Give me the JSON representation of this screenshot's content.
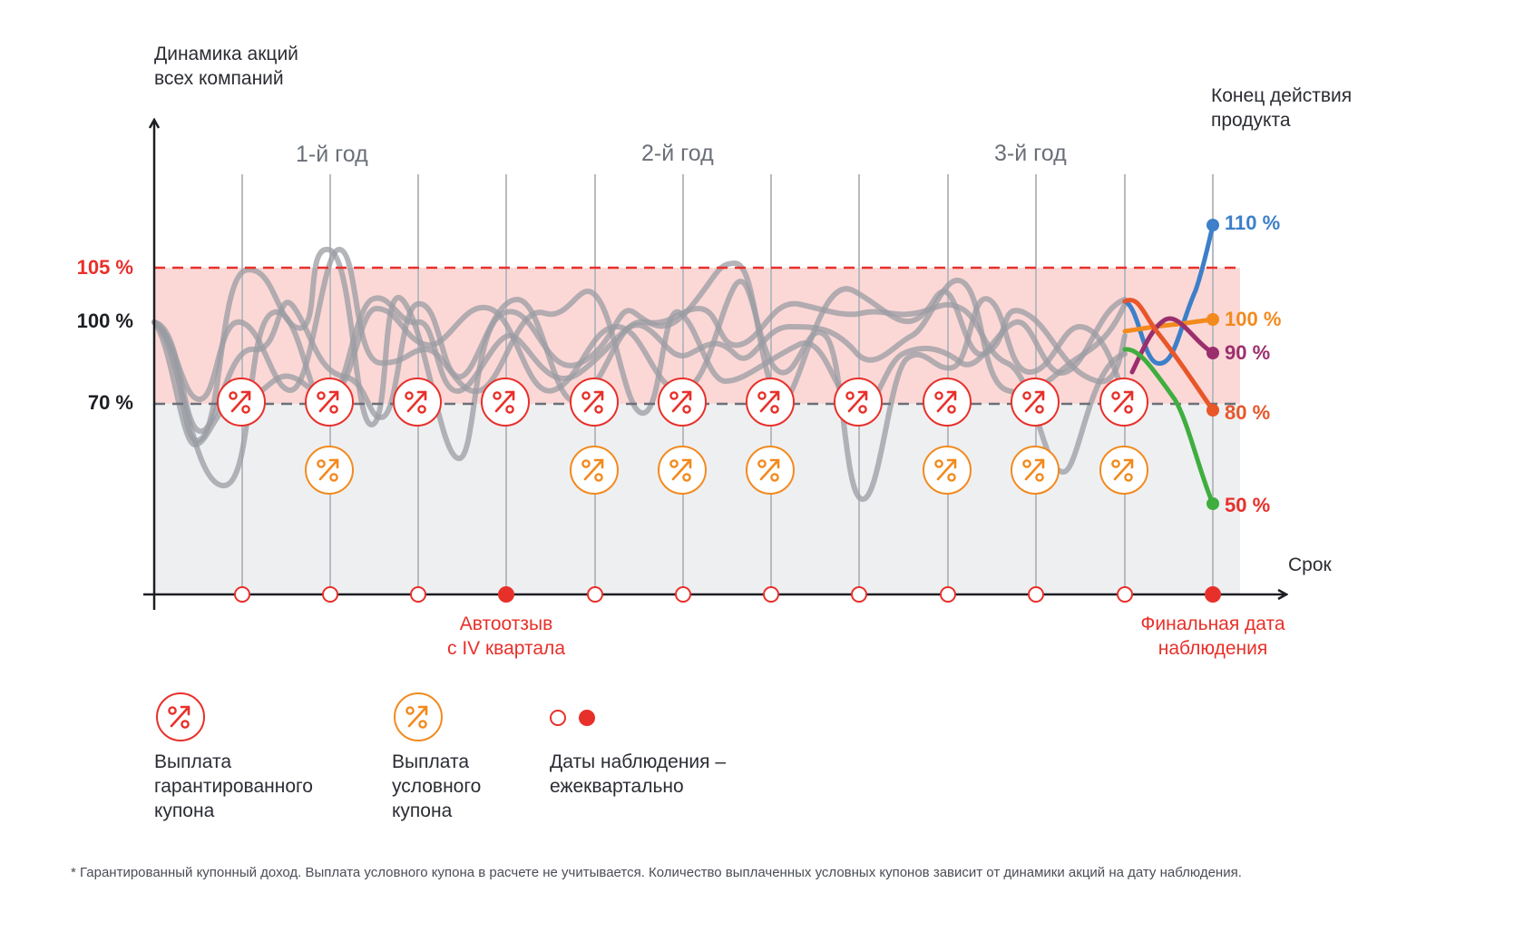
{
  "y_axis_title": [
    "Динамика акций",
    "всех компаний"
  ],
  "end_title": [
    "Конец действия",
    "продукта"
  ],
  "years": [
    "1-й год",
    "2-й год",
    "3-й год"
  ],
  "levels": {
    "barrier_high": "105 %",
    "initial": "100 %",
    "barrier_low": "70 %"
  },
  "x_axis_label": "Срок",
  "autocall_note": [
    "Автоотзыв",
    "с IV квартала"
  ],
  "final_note": [
    "Финальная дата",
    "наблюдения"
  ],
  "end_values": [
    {
      "label": "110 %",
      "color": "#3d7fc9"
    },
    {
      "label": "100 %",
      "color": "#f28a1e"
    },
    {
      "label": "90 %",
      "color": "#9b2f6e"
    },
    {
      "label": "80 %",
      "color": "#e8562a"
    },
    {
      "label": "50 %",
      "color": "#e8302a"
    }
  ],
  "legend": [
    {
      "icon": "guaranteed-coupon-icon",
      "text": [
        "Выплата",
        "гарантированного",
        "купона"
      ]
    },
    {
      "icon": "conditional-coupon-icon",
      "text": [
        "Выплата",
        "условного",
        "купона"
      ]
    },
    {
      "icon": "observation-date-icon",
      "text": [
        "Даты наблюдения –",
        "ежеквартально"
      ]
    }
  ],
  "footnote": "* Гарантированный купонный доход. Выплата условного купона в расчете не учитывается. Количество выплаченных условных купонов зависит от динамики акций на дату наблюдения.",
  "colors": {
    "red": "#e8302a",
    "orange": "#f28a1e",
    "grey_line": "#9a9ca3",
    "zone_red": "#fbd8d6",
    "zone_grey": "#eeeff1"
  },
  "observations": {
    "count": 12,
    "filled": [
      4,
      12
    ],
    "guaranteed_coupons": [
      1,
      2,
      3,
      4,
      5,
      6,
      7,
      8,
      9,
      10,
      11
    ],
    "conditional_coupons": [
      2,
      5,
      6,
      7,
      9,
      10,
      11
    ]
  }
}
